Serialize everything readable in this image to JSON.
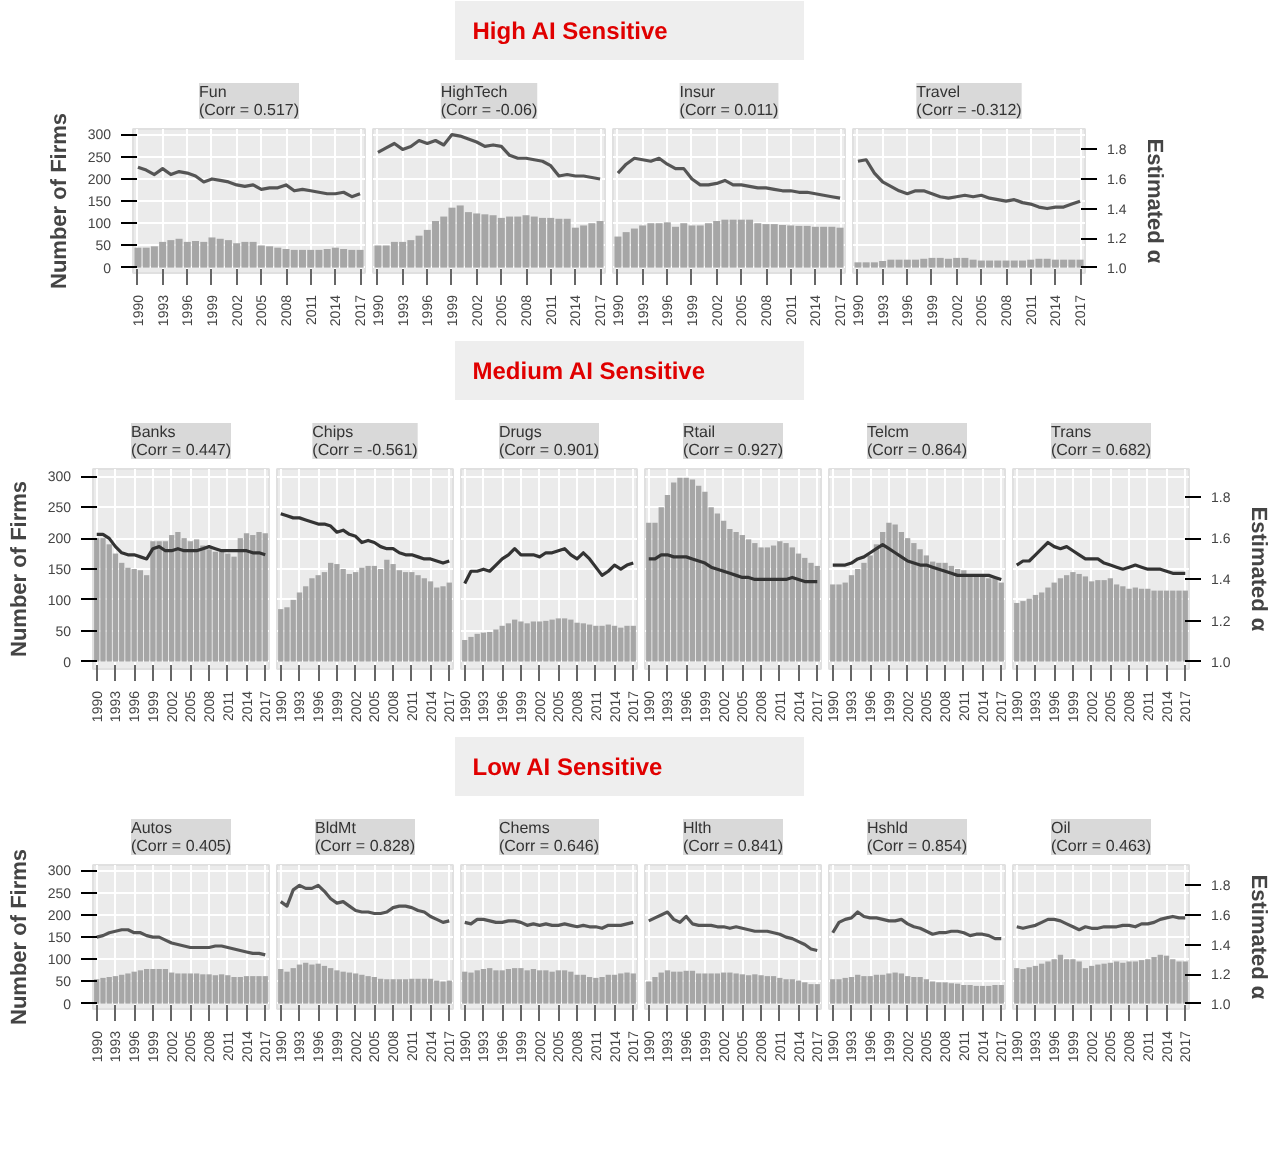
{
  "chart_data": [
    {
      "type": "other",
      "title": "High AI Sensitive"
    },
    {
      "type": "bar",
      "title": "Fun\n(Corr = 0.517)",
      "ylabel": "Number of Firms",
      "tick_labels": [
        "x",
        "y"
      ],
      "grid": true,
      "x": [
        1990,
        1991,
        1992,
        1993,
        1994,
        1995,
        1996,
        1997,
        1998,
        1999,
        2000,
        2001,
        2002,
        2003,
        2004,
        2005,
        2006,
        2007,
        2008,
        2009,
        2010,
        2011,
        2012,
        2013,
        2014,
        2015,
        2016,
        2017
      ],
      "xlim": [
        1989.4,
        2017.6
      ],
      "xticks": [
        1990,
        1993,
        1996,
        1999,
        2002,
        2005,
        2008,
        2011,
        2014,
        2017
      ],
      "ylim": [
        -12,
        312
      ],
      "yticks": [
        0,
        50,
        100,
        150,
        200,
        250,
        300
      ],
      "y2lim": [
        0.964,
        1.938
      ],
      "series": [
        {
          "color": "#a6a6a6",
          "values": [
            45,
            45,
            48,
            58,
            62,
            65,
            58,
            60,
            58,
            68,
            65,
            62,
            55,
            58,
            58,
            50,
            48,
            45,
            42,
            40,
            40,
            40,
            40,
            42,
            45,
            42,
            40,
            40
          ]
        },
        {
          "type": "line",
          "axis": "y2",
          "color": "#555555",
          "values": [
            1.68,
            1.66,
            1.63,
            1.67,
            1.63,
            1.65,
            1.64,
            1.62,
            1.58,
            1.6,
            1.59,
            1.58,
            1.56,
            1.55,
            1.56,
            1.53,
            1.54,
            1.54,
            1.56,
            1.52,
            1.53,
            1.52,
            1.51,
            1.5,
            1.5,
            1.51,
            1.48,
            1.5
          ]
        }
      ]
    },
    {
      "type": "bar",
      "title": "HighTech\n(Corr = -0.06)",
      "tick_labels": "x",
      "grid": true,
      "x": [
        1990,
        1991,
        1992,
        1993,
        1994,
        1995,
        1996,
        1997,
        1998,
        1999,
        2000,
        2001,
        2002,
        2003,
        2004,
        2005,
        2006,
        2007,
        2008,
        2009,
        2010,
        2011,
        2012,
        2013,
        2014,
        2015,
        2016,
        2017
      ],
      "xlim": [
        1989.4,
        2017.6
      ],
      "xticks": [
        1990,
        1993,
        1996,
        1999,
        2002,
        2005,
        2008,
        2011,
        2014,
        2017
      ],
      "ylim": [
        -12,
        312
      ],
      "y2lim": [
        0.964,
        1.938
      ],
      "series": [
        {
          "color": "#a6a6a6",
          "values": [
            50,
            50,
            58,
            58,
            62,
            72,
            85,
            105,
            115,
            135,
            140,
            125,
            122,
            120,
            118,
            112,
            115,
            115,
            118,
            115,
            112,
            112,
            110,
            110,
            90,
            95,
            100,
            105
          ]
        },
        {
          "type": "line",
          "axis": "y2",
          "color": "#555555",
          "values": [
            1.78,
            1.81,
            1.84,
            1.8,
            1.82,
            1.86,
            1.84,
            1.86,
            1.83,
            1.9,
            1.89,
            1.87,
            1.85,
            1.82,
            1.83,
            1.82,
            1.76,
            1.74,
            1.74,
            1.73,
            1.72,
            1.69,
            1.62,
            1.63,
            1.62,
            1.62,
            1.61,
            1.6
          ]
        }
      ]
    },
    {
      "type": "bar",
      "title": "Insur\n(Corr = 0.011)",
      "tick_labels": "x",
      "grid": true,
      "x": [
        1990,
        1991,
        1992,
        1993,
        1994,
        1995,
        1996,
        1997,
        1998,
        1999,
        2000,
        2001,
        2002,
        2003,
        2004,
        2005,
        2006,
        2007,
        2008,
        2009,
        2010,
        2011,
        2012,
        2013,
        2014,
        2015,
        2016,
        2017
      ],
      "xlim": [
        1989.4,
        2017.6
      ],
      "xticks": [
        1990,
        1993,
        1996,
        1999,
        2002,
        2005,
        2008,
        2011,
        2014,
        2017
      ],
      "ylim": [
        -12,
        312
      ],
      "y2lim": [
        0.964,
        1.938
      ],
      "series": [
        {
          "color": "#a6a6a6",
          "values": [
            70,
            80,
            88,
            95,
            100,
            100,
            102,
            92,
            100,
            95,
            95,
            100,
            105,
            108,
            108,
            108,
            108,
            100,
            98,
            98,
            96,
            95,
            94,
            94,
            92,
            92,
            92,
            90
          ]
        },
        {
          "type": "line",
          "axis": "y2",
          "color": "#555555",
          "values": [
            1.64,
            1.7,
            1.74,
            1.73,
            1.72,
            1.74,
            1.7,
            1.67,
            1.67,
            1.6,
            1.56,
            1.56,
            1.57,
            1.59,
            1.56,
            1.56,
            1.55,
            1.54,
            1.54,
            1.53,
            1.52,
            1.52,
            1.51,
            1.51,
            1.5,
            1.49,
            1.48,
            1.47
          ]
        }
      ]
    },
    {
      "type": "bar",
      "title": "Travel\n(Corr = -0.312)",
      "y2label": "Estimated α",
      "tick_labels": [
        "x",
        "y2"
      ],
      "grid": true,
      "x": [
        1990,
        1991,
        1992,
        1993,
        1994,
        1995,
        1996,
        1997,
        1998,
        1999,
        2000,
        2001,
        2002,
        2003,
        2004,
        2005,
        2006,
        2007,
        2008,
        2009,
        2010,
        2011,
        2012,
        2013,
        2014,
        2015,
        2016,
        2017
      ],
      "xlim": [
        1989.4,
        2017.6
      ],
      "xticks": [
        1990,
        1993,
        1996,
        1999,
        2002,
        2005,
        2008,
        2011,
        2014,
        2017
      ],
      "ylim": [
        -12,
        312
      ],
      "y2lim": [
        0.964,
        1.938
      ],
      "y2ticks": [
        {
          "value": 1.0,
          "label": "1.0"
        },
        {
          "value": 1.2,
          "label": "1.2"
        },
        {
          "value": 1.4,
          "label": "1.4"
        },
        {
          "value": 1.6,
          "label": "1.6"
        },
        {
          "value": 1.8,
          "label": "1.8"
        }
      ],
      "series": [
        {
          "color": "#a6a6a6",
          "values": [
            12,
            12,
            12,
            15,
            18,
            18,
            18,
            18,
            20,
            22,
            22,
            20,
            22,
            22,
            18,
            16,
            16,
            16,
            16,
            16,
            16,
            18,
            20,
            20,
            18,
            18,
            18,
            18
          ]
        },
        {
          "type": "line",
          "axis": "y2",
          "color": "#555555",
          "values": [
            1.72,
            1.73,
            1.64,
            1.58,
            1.55,
            1.52,
            1.5,
            1.52,
            1.52,
            1.5,
            1.48,
            1.47,
            1.48,
            1.49,
            1.48,
            1.49,
            1.47,
            1.46,
            1.45,
            1.46,
            1.44,
            1.43,
            1.41,
            1.4,
            1.41,
            1.41,
            1.43,
            1.45
          ]
        }
      ]
    },
    {
      "type": "other",
      "title": "Medium AI Sensitive"
    },
    {
      "type": "bar",
      "title": "Banks\n(Corr = 0.447)",
      "ylabel": "Number of Firms",
      "tick_labels": [
        "x",
        "y"
      ],
      "grid": true,
      "x": [
        1990,
        1991,
        1992,
        1993,
        1994,
        1995,
        1996,
        1997,
        1998,
        1999,
        2000,
        2001,
        2002,
        2003,
        2004,
        2005,
        2006,
        2007,
        2008,
        2009,
        2010,
        2011,
        2012,
        2013,
        2014,
        2015,
        2016,
        2017
      ],
      "xlim": [
        1989.4,
        2017.6
      ],
      "xticks": [
        1990,
        1993,
        1996,
        1999,
        2002,
        2005,
        2008,
        2011,
        2014,
        2017
      ],
      "ylim": [
        -12,
        312
      ],
      "yticks": [
        0,
        50,
        100,
        150,
        200,
        250,
        300
      ],
      "y2lim": [
        0.964,
        1.938
      ],
      "series": [
        {
          "color": "#a6a6a6",
          "values": [
            200,
            200,
            190,
            175,
            160,
            152,
            150,
            148,
            140,
            195,
            195,
            195,
            205,
            210,
            200,
            195,
            198,
            188,
            182,
            178,
            178,
            175,
            170,
            200,
            208,
            205,
            210,
            208
          ]
        },
        {
          "type": "line",
          "axis": "y2",
          "color": "#333333",
          "values": [
            1.62,
            1.62,
            1.6,
            1.56,
            1.53,
            1.52,
            1.52,
            1.51,
            1.5,
            1.55,
            1.56,
            1.54,
            1.54,
            1.55,
            1.54,
            1.54,
            1.54,
            1.55,
            1.56,
            1.55,
            1.54,
            1.54,
            1.54,
            1.54,
            1.54,
            1.53,
            1.53,
            1.52
          ]
        }
      ]
    },
    {
      "type": "bar",
      "title": "Chips\n(Corr = -0.561)",
      "tick_labels": "x",
      "grid": true,
      "x": [
        1990,
        1991,
        1992,
        1993,
        1994,
        1995,
        1996,
        1997,
        1998,
        1999,
        2000,
        2001,
        2002,
        2003,
        2004,
        2005,
        2006,
        2007,
        2008,
        2009,
        2010,
        2011,
        2012,
        2013,
        2014,
        2015,
        2016,
        2017
      ],
      "xlim": [
        1989.4,
        2017.6
      ],
      "xticks": [
        1990,
        1993,
        1996,
        1999,
        2002,
        2005,
        2008,
        2011,
        2014,
        2017
      ],
      "ylim": [
        -12,
        312
      ],
      "y2lim": [
        0.964,
        1.938
      ],
      "series": [
        {
          "color": "#a6a6a6",
          "values": [
            85,
            88,
            100,
            112,
            122,
            135,
            140,
            145,
            160,
            158,
            150,
            142,
            145,
            152,
            155,
            155,
            150,
            165,
            158,
            148,
            145,
            145,
            140,
            135,
            130,
            120,
            122,
            128
          ]
        },
        {
          "type": "line",
          "axis": "y2",
          "color": "#333333",
          "values": [
            1.72,
            1.71,
            1.7,
            1.7,
            1.69,
            1.68,
            1.67,
            1.67,
            1.66,
            1.63,
            1.64,
            1.62,
            1.61,
            1.58,
            1.59,
            1.58,
            1.56,
            1.55,
            1.55,
            1.53,
            1.52,
            1.52,
            1.51,
            1.5,
            1.5,
            1.49,
            1.48,
            1.49
          ]
        }
      ]
    },
    {
      "type": "bar",
      "title": "Drugs\n(Corr = 0.901)",
      "tick_labels": "x",
      "grid": true,
      "x": [
        1990,
        1991,
        1992,
        1993,
        1994,
        1995,
        1996,
        1997,
        1998,
        1999,
        2000,
        2001,
        2002,
        2003,
        2004,
        2005,
        2006,
        2007,
        2008,
        2009,
        2010,
        2011,
        2012,
        2013,
        2014,
        2015,
        2016,
        2017
      ],
      "xlim": [
        1989.4,
        2017.6
      ],
      "xticks": [
        1990,
        1993,
        1996,
        1999,
        2002,
        2005,
        2008,
        2011,
        2014,
        2017
      ],
      "ylim": [
        -12,
        312
      ],
      "y2lim": [
        0.964,
        1.938
      ],
      "series": [
        {
          "color": "#a6a6a6",
          "values": [
            35,
            40,
            45,
            47,
            48,
            52,
            58,
            62,
            68,
            65,
            62,
            65,
            65,
            66,
            68,
            70,
            70,
            68,
            63,
            62,
            60,
            58,
            58,
            60,
            58,
            55,
            58,
            58
          ]
        },
        {
          "type": "line",
          "axis": "y2",
          "color": "#333333",
          "values": [
            1.38,
            1.44,
            1.44,
            1.45,
            1.44,
            1.47,
            1.5,
            1.52,
            1.55,
            1.52,
            1.52,
            1.52,
            1.51,
            1.53,
            1.53,
            1.54,
            1.55,
            1.52,
            1.5,
            1.53,
            1.5,
            1.46,
            1.42,
            1.44,
            1.47,
            1.45,
            1.47,
            1.48
          ]
        }
      ]
    },
    {
      "type": "bar",
      "title": "Rtail\n(Corr = 0.927)",
      "tick_labels": "x",
      "grid": true,
      "x": [
        1990,
        1991,
        1992,
        1993,
        1994,
        1995,
        1996,
        1997,
        1998,
        1999,
        2000,
        2001,
        2002,
        2003,
        2004,
        2005,
        2006,
        2007,
        2008,
        2009,
        2010,
        2011,
        2012,
        2013,
        2014,
        2015,
        2016,
        2017
      ],
      "xlim": [
        1989.4,
        2017.6
      ],
      "xticks": [
        1990,
        1993,
        1996,
        1999,
        2002,
        2005,
        2008,
        2011,
        2014,
        2017
      ],
      "ylim": [
        -12,
        312
      ],
      "y2lim": [
        0.964,
        1.938
      ],
      "series": [
        {
          "color": "#a6a6a6",
          "values": [
            225,
            225,
            250,
            270,
            290,
            298,
            298,
            295,
            285,
            275,
            250,
            240,
            228,
            215,
            210,
            205,
            198,
            192,
            185,
            185,
            188,
            195,
            192,
            185,
            175,
            168,
            160,
            155
          ]
        },
        {
          "type": "line",
          "axis": "y2",
          "color": "#333333",
          "values": [
            1.5,
            1.5,
            1.52,
            1.52,
            1.51,
            1.51,
            1.51,
            1.5,
            1.49,
            1.48,
            1.46,
            1.45,
            1.44,
            1.43,
            1.42,
            1.41,
            1.41,
            1.4,
            1.4,
            1.4,
            1.4,
            1.4,
            1.4,
            1.41,
            1.4,
            1.39,
            1.39,
            1.39
          ]
        }
      ]
    },
    {
      "type": "bar",
      "title": "Telcm\n(Corr = 0.864)",
      "tick_labels": "x",
      "grid": true,
      "x": [
        1990,
        1991,
        1992,
        1993,
        1994,
        1995,
        1996,
        1997,
        1998,
        1999,
        2000,
        2001,
        2002,
        2003,
        2004,
        2005,
        2006,
        2007,
        2008,
        2009,
        2010,
        2011,
        2012,
        2013,
        2014,
        2015,
        2016,
        2017
      ],
      "xlim": [
        1989.4,
        2017.6
      ],
      "xticks": [
        1990,
        1993,
        1996,
        1999,
        2002,
        2005,
        2008,
        2011,
        2014,
        2017
      ],
      "ylim": [
        -12,
        312
      ],
      "y2lim": [
        0.964,
        1.938
      ],
      "series": [
        {
          "color": "#a6a6a6",
          "values": [
            125,
            125,
            128,
            140,
            150,
            160,
            172,
            190,
            210,
            225,
            222,
            210,
            200,
            192,
            182,
            172,
            162,
            160,
            160,
            155,
            150,
            148,
            140,
            138,
            138,
            135,
            135,
            128
          ]
        },
        {
          "type": "line",
          "axis": "y2",
          "color": "#333333",
          "values": [
            1.47,
            1.47,
            1.47,
            1.48,
            1.5,
            1.51,
            1.53,
            1.55,
            1.57,
            1.55,
            1.53,
            1.51,
            1.49,
            1.48,
            1.47,
            1.47,
            1.46,
            1.45,
            1.44,
            1.43,
            1.42,
            1.42,
            1.42,
            1.42,
            1.42,
            1.42,
            1.41,
            1.4
          ]
        }
      ]
    },
    {
      "type": "bar",
      "title": "Trans\n(Corr = 0.682)",
      "y2label": "Estimated α",
      "tick_labels": [
        "x",
        "y2"
      ],
      "grid": true,
      "x": [
        1990,
        1991,
        1992,
        1993,
        1994,
        1995,
        1996,
        1997,
        1998,
        1999,
        2000,
        2001,
        2002,
        2003,
        2004,
        2005,
        2006,
        2007,
        2008,
        2009,
        2010,
        2011,
        2012,
        2013,
        2014,
        2015,
        2016,
        2017
      ],
      "xlim": [
        1989.4,
        2017.6
      ],
      "xticks": [
        1990,
        1993,
        1996,
        1999,
        2002,
        2005,
        2008,
        2011,
        2014,
        2017
      ],
      "ylim": [
        -12,
        312
      ],
      "y2lim": [
        0.964,
        1.938
      ],
      "y2ticks": [
        {
          "value": 1.0,
          "label": "1.0"
        },
        {
          "value": 1.2,
          "label": "1.2"
        },
        {
          "value": 1.4,
          "label": "1.4"
        },
        {
          "value": 1.6,
          "label": "1.6"
        },
        {
          "value": 1.8,
          "label": "1.8"
        }
      ],
      "series": [
        {
          "color": "#a6a6a6",
          "values": [
            95,
            98,
            102,
            108,
            112,
            120,
            128,
            135,
            140,
            145,
            142,
            138,
            130,
            132,
            132,
            135,
            125,
            122,
            118,
            120,
            118,
            118,
            115,
            115,
            115,
            115,
            115,
            115
          ]
        },
        {
          "type": "line",
          "axis": "y2",
          "color": "#333333",
          "values": [
            1.47,
            1.49,
            1.49,
            1.52,
            1.55,
            1.58,
            1.56,
            1.55,
            1.56,
            1.54,
            1.52,
            1.5,
            1.5,
            1.5,
            1.48,
            1.47,
            1.46,
            1.45,
            1.46,
            1.47,
            1.46,
            1.45,
            1.45,
            1.45,
            1.44,
            1.43,
            1.43,
            1.43
          ]
        }
      ]
    },
    {
      "type": "other",
      "title": "Low AI Sensitive"
    },
    {
      "type": "bar",
      "title": "Autos\n(Corr = 0.405)",
      "ylabel": "Number of Firms",
      "tick_labels": [
        "x",
        "y"
      ],
      "grid": true,
      "x": [
        1990,
        1991,
        1992,
        1993,
        1994,
        1995,
        1996,
        1997,
        1998,
        1999,
        2000,
        2001,
        2002,
        2003,
        2004,
        2005,
        2006,
        2007,
        2008,
        2009,
        2010,
        2011,
        2012,
        2013,
        2014,
        2015,
        2016,
        2017
      ],
      "xlim": [
        1989.4,
        2017.6
      ],
      "xticks": [
        1990,
        1993,
        1996,
        1999,
        2002,
        2005,
        2008,
        2011,
        2014,
        2017
      ],
      "ylim": [
        -12,
        312
      ],
      "yticks": [
        0,
        50,
        100,
        150,
        200,
        250,
        300
      ],
      "y2lim": [
        0.964,
        1.938
      ],
      "series": [
        {
          "color": "#a6a6a6",
          "values": [
            55,
            58,
            60,
            62,
            65,
            68,
            72,
            75,
            78,
            78,
            78,
            78,
            70,
            68,
            68,
            68,
            68,
            66,
            66,
            64,
            66,
            64,
            60,
            60,
            62,
            62,
            62,
            62
          ]
        },
        {
          "type": "line",
          "axis": "y2",
          "color": "#555555",
          "values": [
            1.45,
            1.46,
            1.48,
            1.49,
            1.5,
            1.5,
            1.48,
            1.48,
            1.46,
            1.45,
            1.45,
            1.43,
            1.41,
            1.4,
            1.39,
            1.38,
            1.38,
            1.38,
            1.38,
            1.39,
            1.39,
            1.38,
            1.37,
            1.36,
            1.35,
            1.34,
            1.34,
            1.33
          ]
        }
      ]
    },
    {
      "type": "bar",
      "title": "BldMt\n(Corr = 0.828)",
      "tick_labels": "x",
      "grid": true,
      "x": [
        1990,
        1991,
        1992,
        1993,
        1994,
        1995,
        1996,
        1997,
        1998,
        1999,
        2000,
        2001,
        2002,
        2003,
        2004,
        2005,
        2006,
        2007,
        2008,
        2009,
        2010,
        2011,
        2012,
        2013,
        2014,
        2015,
        2016,
        2017
      ],
      "xlim": [
        1989.4,
        2017.6
      ],
      "xticks": [
        1990,
        1993,
        1996,
        1999,
        2002,
        2005,
        2008,
        2011,
        2014,
        2017
      ],
      "ylim": [
        -12,
        312
      ],
      "y2lim": [
        0.964,
        1.938
      ],
      "series": [
        {
          "color": "#a6a6a6",
          "values": [
            78,
            72,
            80,
            88,
            92,
            88,
            90,
            85,
            80,
            75,
            72,
            70,
            68,
            65,
            62,
            60,
            56,
            55,
            55,
            55,
            55,
            56,
            56,
            56,
            56,
            52,
            50,
            52
          ]
        },
        {
          "type": "line",
          "axis": "y2",
          "color": "#555555",
          "values": [
            1.69,
            1.66,
            1.77,
            1.8,
            1.78,
            1.78,
            1.8,
            1.76,
            1.71,
            1.68,
            1.69,
            1.66,
            1.63,
            1.62,
            1.62,
            1.61,
            1.61,
            1.62,
            1.65,
            1.66,
            1.66,
            1.65,
            1.63,
            1.62,
            1.59,
            1.57,
            1.55,
            1.56
          ]
        }
      ]
    },
    {
      "type": "bar",
      "title": "Chems\n(Corr = 0.646)",
      "tick_labels": "x",
      "grid": true,
      "x": [
        1990,
        1991,
        1992,
        1993,
        1994,
        1995,
        1996,
        1997,
        1998,
        1999,
        2000,
        2001,
        2002,
        2003,
        2004,
        2005,
        2006,
        2007,
        2008,
        2009,
        2010,
        2011,
        2012,
        2013,
        2014,
        2015,
        2016,
        2017
      ],
      "xlim": [
        1989.4,
        2017.6
      ],
      "xticks": [
        1990,
        1993,
        1996,
        1999,
        2002,
        2005,
        2008,
        2011,
        2014,
        2017
      ],
      "ylim": [
        -12,
        312
      ],
      "y2lim": [
        0.964,
        1.938
      ],
      "series": [
        {
          "color": "#a6a6a6",
          "values": [
            72,
            70,
            75,
            78,
            80,
            75,
            75,
            78,
            80,
            80,
            75,
            78,
            75,
            75,
            72,
            75,
            75,
            72,
            65,
            65,
            60,
            58,
            60,
            65,
            65,
            68,
            70,
            68
          ]
        },
        {
          "type": "line",
          "axis": "y2",
          "color": "#555555",
          "values": [
            1.55,
            1.54,
            1.57,
            1.57,
            1.56,
            1.55,
            1.55,
            1.56,
            1.56,
            1.55,
            1.53,
            1.54,
            1.53,
            1.54,
            1.53,
            1.53,
            1.54,
            1.53,
            1.52,
            1.53,
            1.52,
            1.52,
            1.51,
            1.53,
            1.53,
            1.53,
            1.54,
            1.55
          ]
        }
      ]
    },
    {
      "type": "bar",
      "title": "Hlth\n(Corr = 0.841)",
      "tick_labels": "x",
      "grid": true,
      "x": [
        1990,
        1991,
        1992,
        1993,
        1994,
        1995,
        1996,
        1997,
        1998,
        1999,
        2000,
        2001,
        2002,
        2003,
        2004,
        2005,
        2006,
        2007,
        2008,
        2009,
        2010,
        2011,
        2012,
        2013,
        2014,
        2015,
        2016,
        2017
      ],
      "xlim": [
        1989.4,
        2017.6
      ],
      "xticks": [
        1990,
        1993,
        1996,
        1999,
        2002,
        2005,
        2008,
        2011,
        2014,
        2017
      ],
      "ylim": [
        -12,
        312
      ],
      "y2lim": [
        0.964,
        1.938
      ],
      "series": [
        {
          "color": "#a6a6a6",
          "values": [
            50,
            60,
            70,
            75,
            72,
            72,
            74,
            74,
            68,
            68,
            68,
            68,
            70,
            70,
            68,
            66,
            64,
            66,
            64,
            62,
            62,
            58,
            55,
            55,
            52,
            48,
            44,
            44
          ]
        },
        {
          "type": "line",
          "axis": "y2",
          "color": "#555555",
          "values": [
            1.56,
            1.58,
            1.6,
            1.62,
            1.57,
            1.55,
            1.59,
            1.54,
            1.53,
            1.53,
            1.53,
            1.52,
            1.52,
            1.51,
            1.52,
            1.51,
            1.5,
            1.49,
            1.49,
            1.49,
            1.48,
            1.47,
            1.45,
            1.44,
            1.42,
            1.4,
            1.37,
            1.36
          ]
        }
      ]
    },
    {
      "type": "bar",
      "title": "Hshld\n(Corr = 0.854)",
      "tick_labels": "x",
      "grid": true,
      "x": [
        1990,
        1991,
        1992,
        1993,
        1994,
        1995,
        1996,
        1997,
        1998,
        1999,
        2000,
        2001,
        2002,
        2003,
        2004,
        2005,
        2006,
        2007,
        2008,
        2009,
        2010,
        2011,
        2012,
        2013,
        2014,
        2015,
        2016,
        2017
      ],
      "xlim": [
        1989.4,
        2017.6
      ],
      "xticks": [
        1990,
        1993,
        1996,
        1999,
        2002,
        2005,
        2008,
        2011,
        2014,
        2017
      ],
      "ylim": [
        -12,
        312
      ],
      "y2lim": [
        0.964,
        1.938
      ],
      "series": [
        {
          "color": "#a6a6a6",
          "values": [
            55,
            55,
            58,
            60,
            65,
            62,
            62,
            65,
            65,
            68,
            70,
            68,
            62,
            60,
            60,
            55,
            50,
            48,
            48,
            46,
            45,
            42,
            42,
            40,
            40,
            40,
            42,
            42
          ]
        },
        {
          "type": "line",
          "axis": "y2",
          "color": "#555555",
          "values": [
            1.48,
            1.55,
            1.57,
            1.58,
            1.62,
            1.59,
            1.58,
            1.58,
            1.57,
            1.56,
            1.56,
            1.57,
            1.54,
            1.52,
            1.51,
            1.49,
            1.47,
            1.48,
            1.48,
            1.49,
            1.49,
            1.48,
            1.46,
            1.47,
            1.47,
            1.46,
            1.44,
            1.44
          ]
        }
      ]
    },
    {
      "type": "bar",
      "title": "Oil\n(Corr = 0.463)",
      "y2label": "Estimated α",
      "tick_labels": [
        "x",
        "y2"
      ],
      "grid": true,
      "x": [
        1990,
        1991,
        1992,
        1993,
        1994,
        1995,
        1996,
        1997,
        1998,
        1999,
        2000,
        2001,
        2002,
        2003,
        2004,
        2005,
        2006,
        2007,
        2008,
        2009,
        2010,
        2011,
        2012,
        2013,
        2014,
        2015,
        2016,
        2017
      ],
      "xlim": [
        1989.4,
        2017.6
      ],
      "xticks": [
        1990,
        1993,
        1996,
        1999,
        2002,
        2005,
        2008,
        2011,
        2014,
        2017
      ],
      "ylim": [
        -12,
        312
      ],
      "y2lim": [
        0.964,
        1.938
      ],
      "y2ticks": [
        {
          "value": 1.0,
          "label": "1.0"
        },
        {
          "value": 1.2,
          "label": "1.2"
        },
        {
          "value": 1.4,
          "label": "1.4"
        },
        {
          "value": 1.6,
          "label": "1.6"
        },
        {
          "value": 1.8,
          "label": "1.8"
        }
      ],
      "series": [
        {
          "color": "#a6a6a6",
          "values": [
            80,
            78,
            82,
            85,
            90,
            95,
            100,
            110,
            100,
            100,
            95,
            80,
            85,
            88,
            90,
            92,
            95,
            92,
            95,
            95,
            98,
            100,
            105,
            110,
            108,
            100,
            95,
            95
          ]
        },
        {
          "type": "line",
          "axis": "y2",
          "color": "#555555",
          "values": [
            1.52,
            1.51,
            1.52,
            1.53,
            1.55,
            1.57,
            1.57,
            1.56,
            1.54,
            1.52,
            1.5,
            1.52,
            1.51,
            1.51,
            1.52,
            1.52,
            1.52,
            1.53,
            1.53,
            1.52,
            1.54,
            1.54,
            1.55,
            1.57,
            1.58,
            1.59,
            1.58,
            1.58
          ]
        }
      ]
    }
  ]
}
